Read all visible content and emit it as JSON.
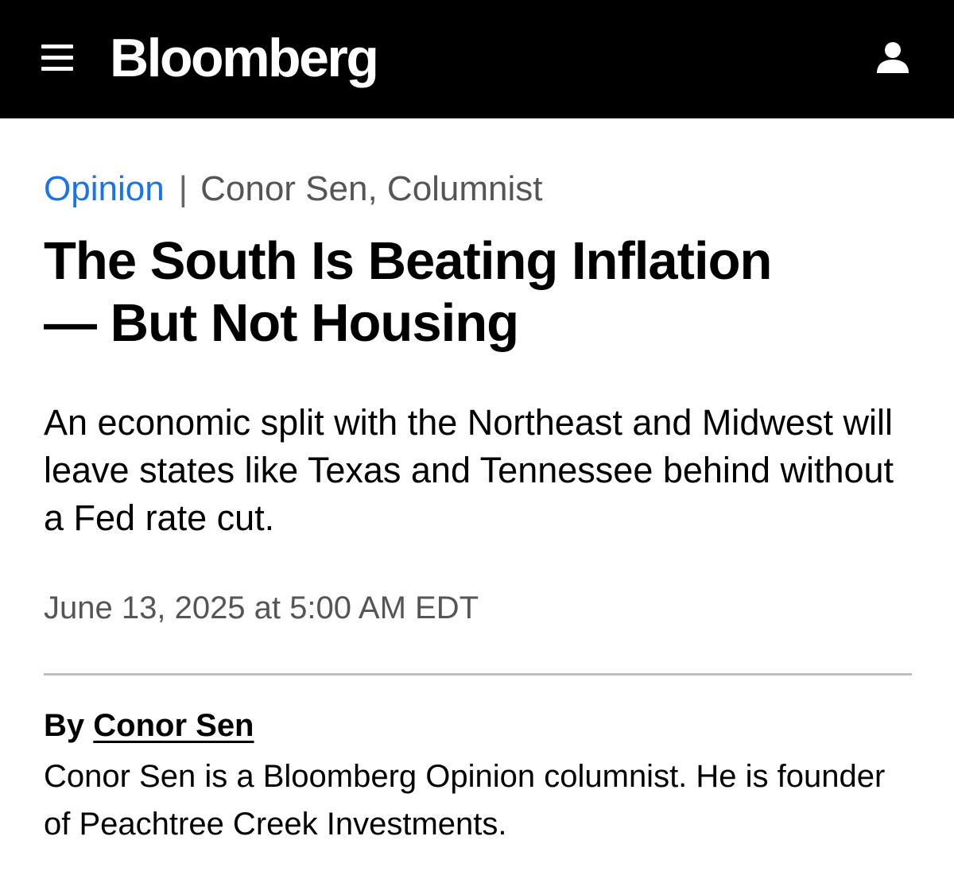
{
  "header": {
    "menu_icon": "hamburger-menu-icon",
    "logo_text": "Bloomberg",
    "account_icon": "user-account-icon",
    "background_color": "#000000",
    "text_color": "#ffffff"
  },
  "article": {
    "section": "Opinion",
    "separator": "|",
    "author_label": "Conor Sen, Columnist",
    "headline_line1": "The South Is Beating Inflation",
    "headline_line2": "— But Not Housing",
    "dek": "An economic split with the Northeast and Midwest will leave states like Texas and Tennessee behind without a Fed rate cut.",
    "timestamp": "June 13, 2025 at 5:00 AM EDT",
    "byline_prefix": "By",
    "byline_author": "Conor Sen",
    "author_bio": "Conor Sen is a Bloomberg Opinion columnist. He is founder of Peachtree Creek Investments.",
    "accent_color": "#1a73e8"
  }
}
